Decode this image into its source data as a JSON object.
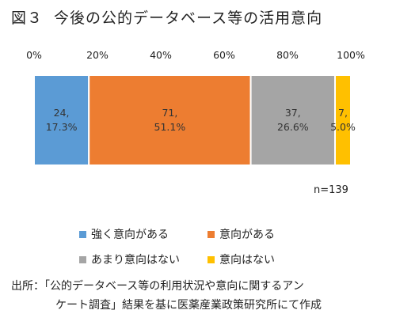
{
  "figure": {
    "label": "図３",
    "title": "今後の公的データベース等の活用意向",
    "note": "n=139",
    "source_line1": "出所：「公的データベース等の利用状況や意向に関するアン",
    "source_line2": "ケート調査」結果を基に医薬産業政策研究所にて作成"
  },
  "chart_data": {
    "type": "bar",
    "orientation": "horizontal-stacked-100",
    "title": "今後の公的データベース等の活用意向",
    "x_ticks": [
      "0%",
      "20%",
      "40%",
      "60%",
      "80%",
      "100%"
    ],
    "xlim": [
      0,
      100
    ],
    "grid": false,
    "legend_position": "bottom",
    "n": 139,
    "series": [
      {
        "name": "強く意向がある",
        "count": 24,
        "percent": 17.3,
        "count_label": "24,",
        "percent_label": "17.3%",
        "color": "#5b9bd5"
      },
      {
        "name": "意向がある",
        "count": 71,
        "percent": 51.1,
        "count_label": "71,",
        "percent_label": "51.1%",
        "color": "#ed7d31"
      },
      {
        "name": "あまり意向はない",
        "count": 37,
        "percent": 26.6,
        "count_label": "37,",
        "percent_label": "26.6%",
        "color": "#a5a5a5"
      },
      {
        "name": "意向はない",
        "count": 7,
        "percent": 5.0,
        "count_label": "7,",
        "percent_label": "5.0%",
        "color": "#ffc000"
      }
    ]
  }
}
